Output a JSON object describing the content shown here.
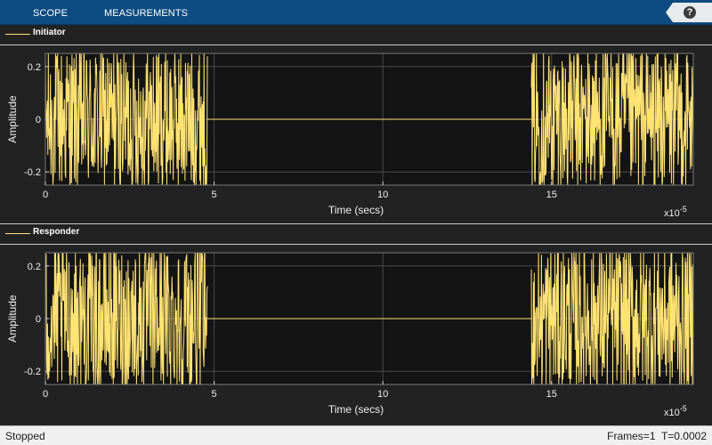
{
  "toolstrip": {
    "tabs": [
      {
        "label": "SCOPE"
      },
      {
        "label": "MEASUREMENTS"
      }
    ],
    "help_label": "?"
  },
  "colors": {
    "toolstrip": "#0d4b80",
    "plot_background": "#141414",
    "trace": "#ffe373",
    "chrome": "#222223"
  },
  "panels": [
    {
      "legend": "Initiator"
    },
    {
      "legend": "Responder"
    }
  ],
  "status": {
    "state": "Stopped",
    "frames_label": "Frames=1",
    "time_label": "T=0.0002"
  },
  "chart_data": [
    {
      "type": "line",
      "series": [
        {
          "name": "Initiator",
          "color": "#ffe373"
        }
      ],
      "xlabel": "Time (secs)",
      "ylabel": "Amplitude",
      "x_multiplier": "x10",
      "x_exponent": "-5",
      "xlim": [
        0,
        19.2
      ],
      "ylim": [
        -0.25,
        0.25
      ],
      "xticks": [
        0,
        5,
        10,
        15
      ],
      "yticks": [
        0.2,
        0,
        -0.2
      ],
      "ytick_labels": [
        "0.2",
        "0",
        "-0.2"
      ],
      "grid": true,
      "segments": [
        {
          "x_start": 0,
          "x_end": 4.8,
          "kind": "noise",
          "amplitude": 0.25
        },
        {
          "x_start": 4.8,
          "x_end": 14.4,
          "kind": "flat",
          "value": 0
        },
        {
          "x_start": 14.4,
          "x_end": 19.2,
          "kind": "noise",
          "amplitude": 0.25
        }
      ]
    },
    {
      "type": "line",
      "series": [
        {
          "name": "Responder",
          "color": "#ffe373"
        }
      ],
      "xlabel": "Time (secs)",
      "ylabel": "Amplitude",
      "x_multiplier": "x10",
      "x_exponent": "-5",
      "xlim": [
        0,
        19.2
      ],
      "ylim": [
        -0.25,
        0.25
      ],
      "xticks": [
        0,
        5,
        10,
        15
      ],
      "yticks": [
        0.2,
        0,
        -0.2
      ],
      "ytick_labels": [
        "0.2",
        "0",
        "-0.2"
      ],
      "grid": true,
      "segments": [
        {
          "x_start": 0,
          "x_end": 4.8,
          "kind": "noise",
          "amplitude": 0.25
        },
        {
          "x_start": 4.8,
          "x_end": 14.4,
          "kind": "flat",
          "value": 0
        },
        {
          "x_start": 14.4,
          "x_end": 19.2,
          "kind": "noise",
          "amplitude": 0.25
        }
      ]
    }
  ]
}
